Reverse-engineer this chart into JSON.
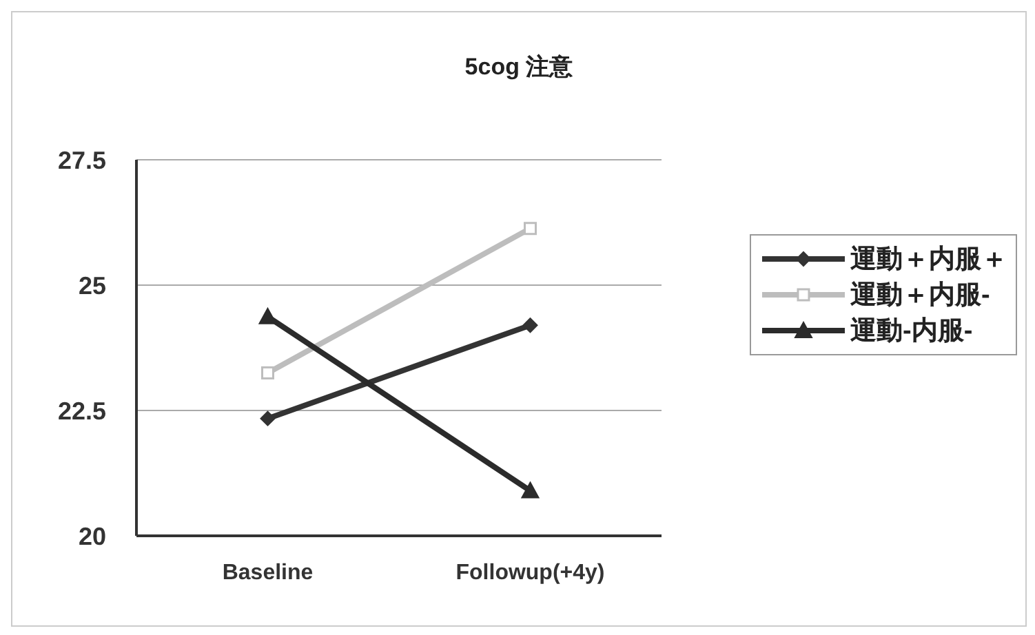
{
  "chart_data": {
    "type": "line",
    "title": "5cog 注意",
    "categories": [
      "Baseline",
      "Followup(+4y)"
    ],
    "series": [
      {
        "name": "運動＋内服＋",
        "color": "#333333",
        "marker": "diamond",
        "values": [
          22.34,
          24.2
        ]
      },
      {
        "name": "運動＋内服-",
        "color": "#bdbdbd",
        "marker": "square",
        "values": [
          23.25,
          26.13
        ]
      },
      {
        "name": "運動-内服-",
        "color": "#2b2b2b",
        "marker": "triangle",
        "values": [
          24.37,
          20.9
        ]
      }
    ],
    "ylim": [
      20,
      27.5
    ],
    "yticks": [
      20,
      22.5,
      25,
      27.5
    ],
    "grid": "y",
    "legend": "right"
  }
}
